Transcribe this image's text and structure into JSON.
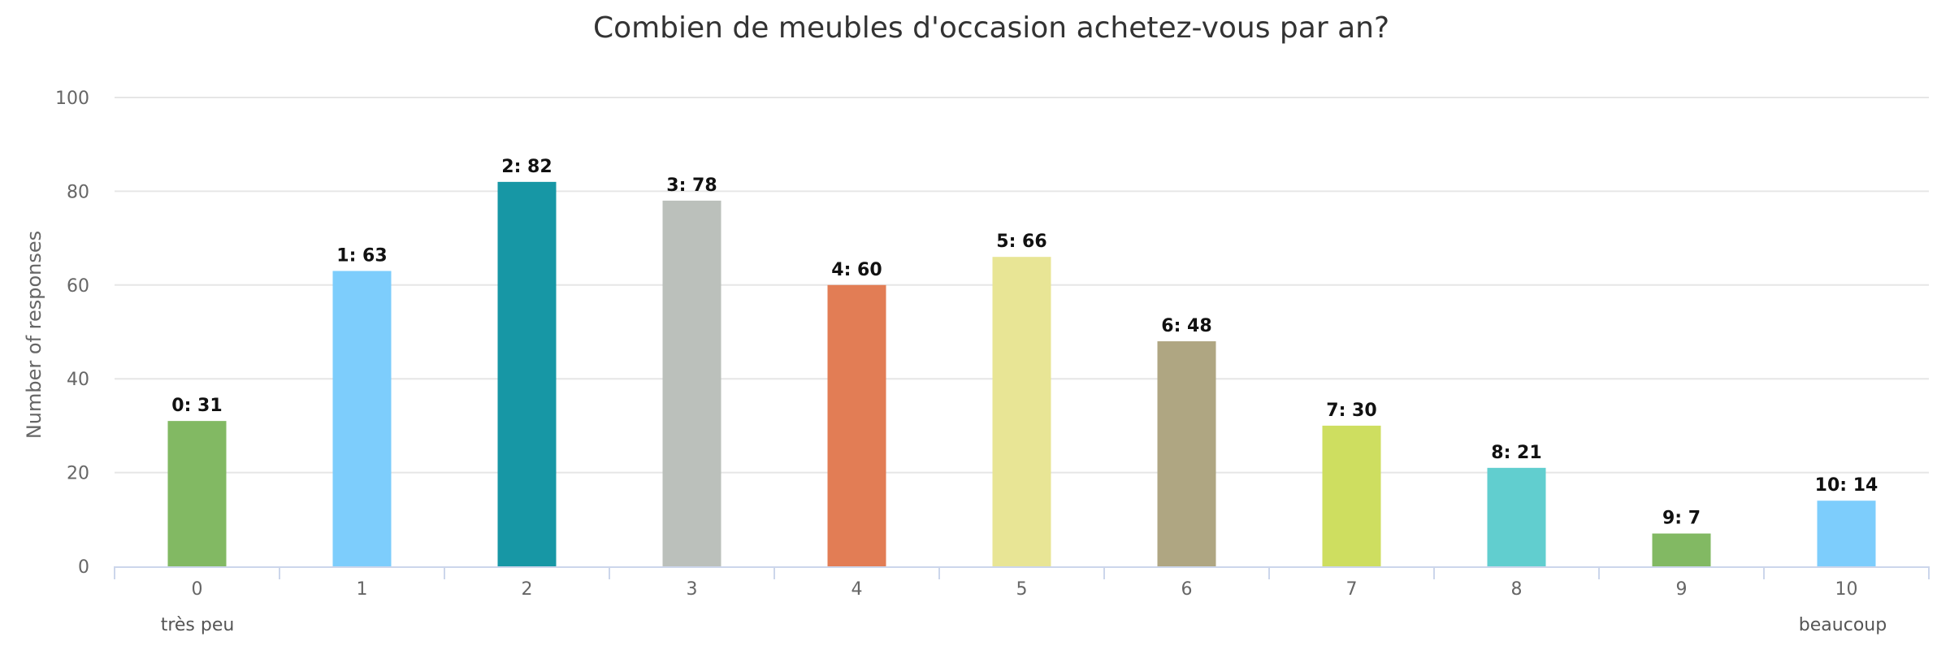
{
  "chart_data": {
    "type": "bar",
    "title": "Combien de meubles d'occasion achetez-vous par an?",
    "ylabel": "Number of responses",
    "xlabel": "",
    "ylim": [
      0,
      100
    ],
    "yticks": [
      0,
      20,
      40,
      60,
      80,
      100
    ],
    "grid": true,
    "legend": "none",
    "categories": [
      "0",
      "1",
      "2",
      "3",
      "4",
      "5",
      "6",
      "7",
      "8",
      "9",
      "10"
    ],
    "values": [
      31,
      63,
      82,
      78,
      60,
      66,
      48,
      30,
      21,
      7,
      14
    ],
    "data_labels": [
      "0: 31",
      "1: 63",
      "2: 82",
      "3: 78",
      "4: 60",
      "5: 66",
      "6: 48",
      "7: 30",
      "8: 21",
      "9: 7",
      "10: 14"
    ],
    "colors": [
      "#82b963",
      "#7dcdfc",
      "#1797a5",
      "#bbc0bb",
      "#e27d55",
      "#e8e595",
      "#afa682",
      "#cede60",
      "#61cecf",
      "#82b963",
      "#7dcdfc"
    ],
    "anchor_labels": {
      "low": "très peu",
      "high": "beaucoup"
    },
    "gridline_color": "#e6e6e6",
    "axis_color": "#ccd6eb"
  }
}
